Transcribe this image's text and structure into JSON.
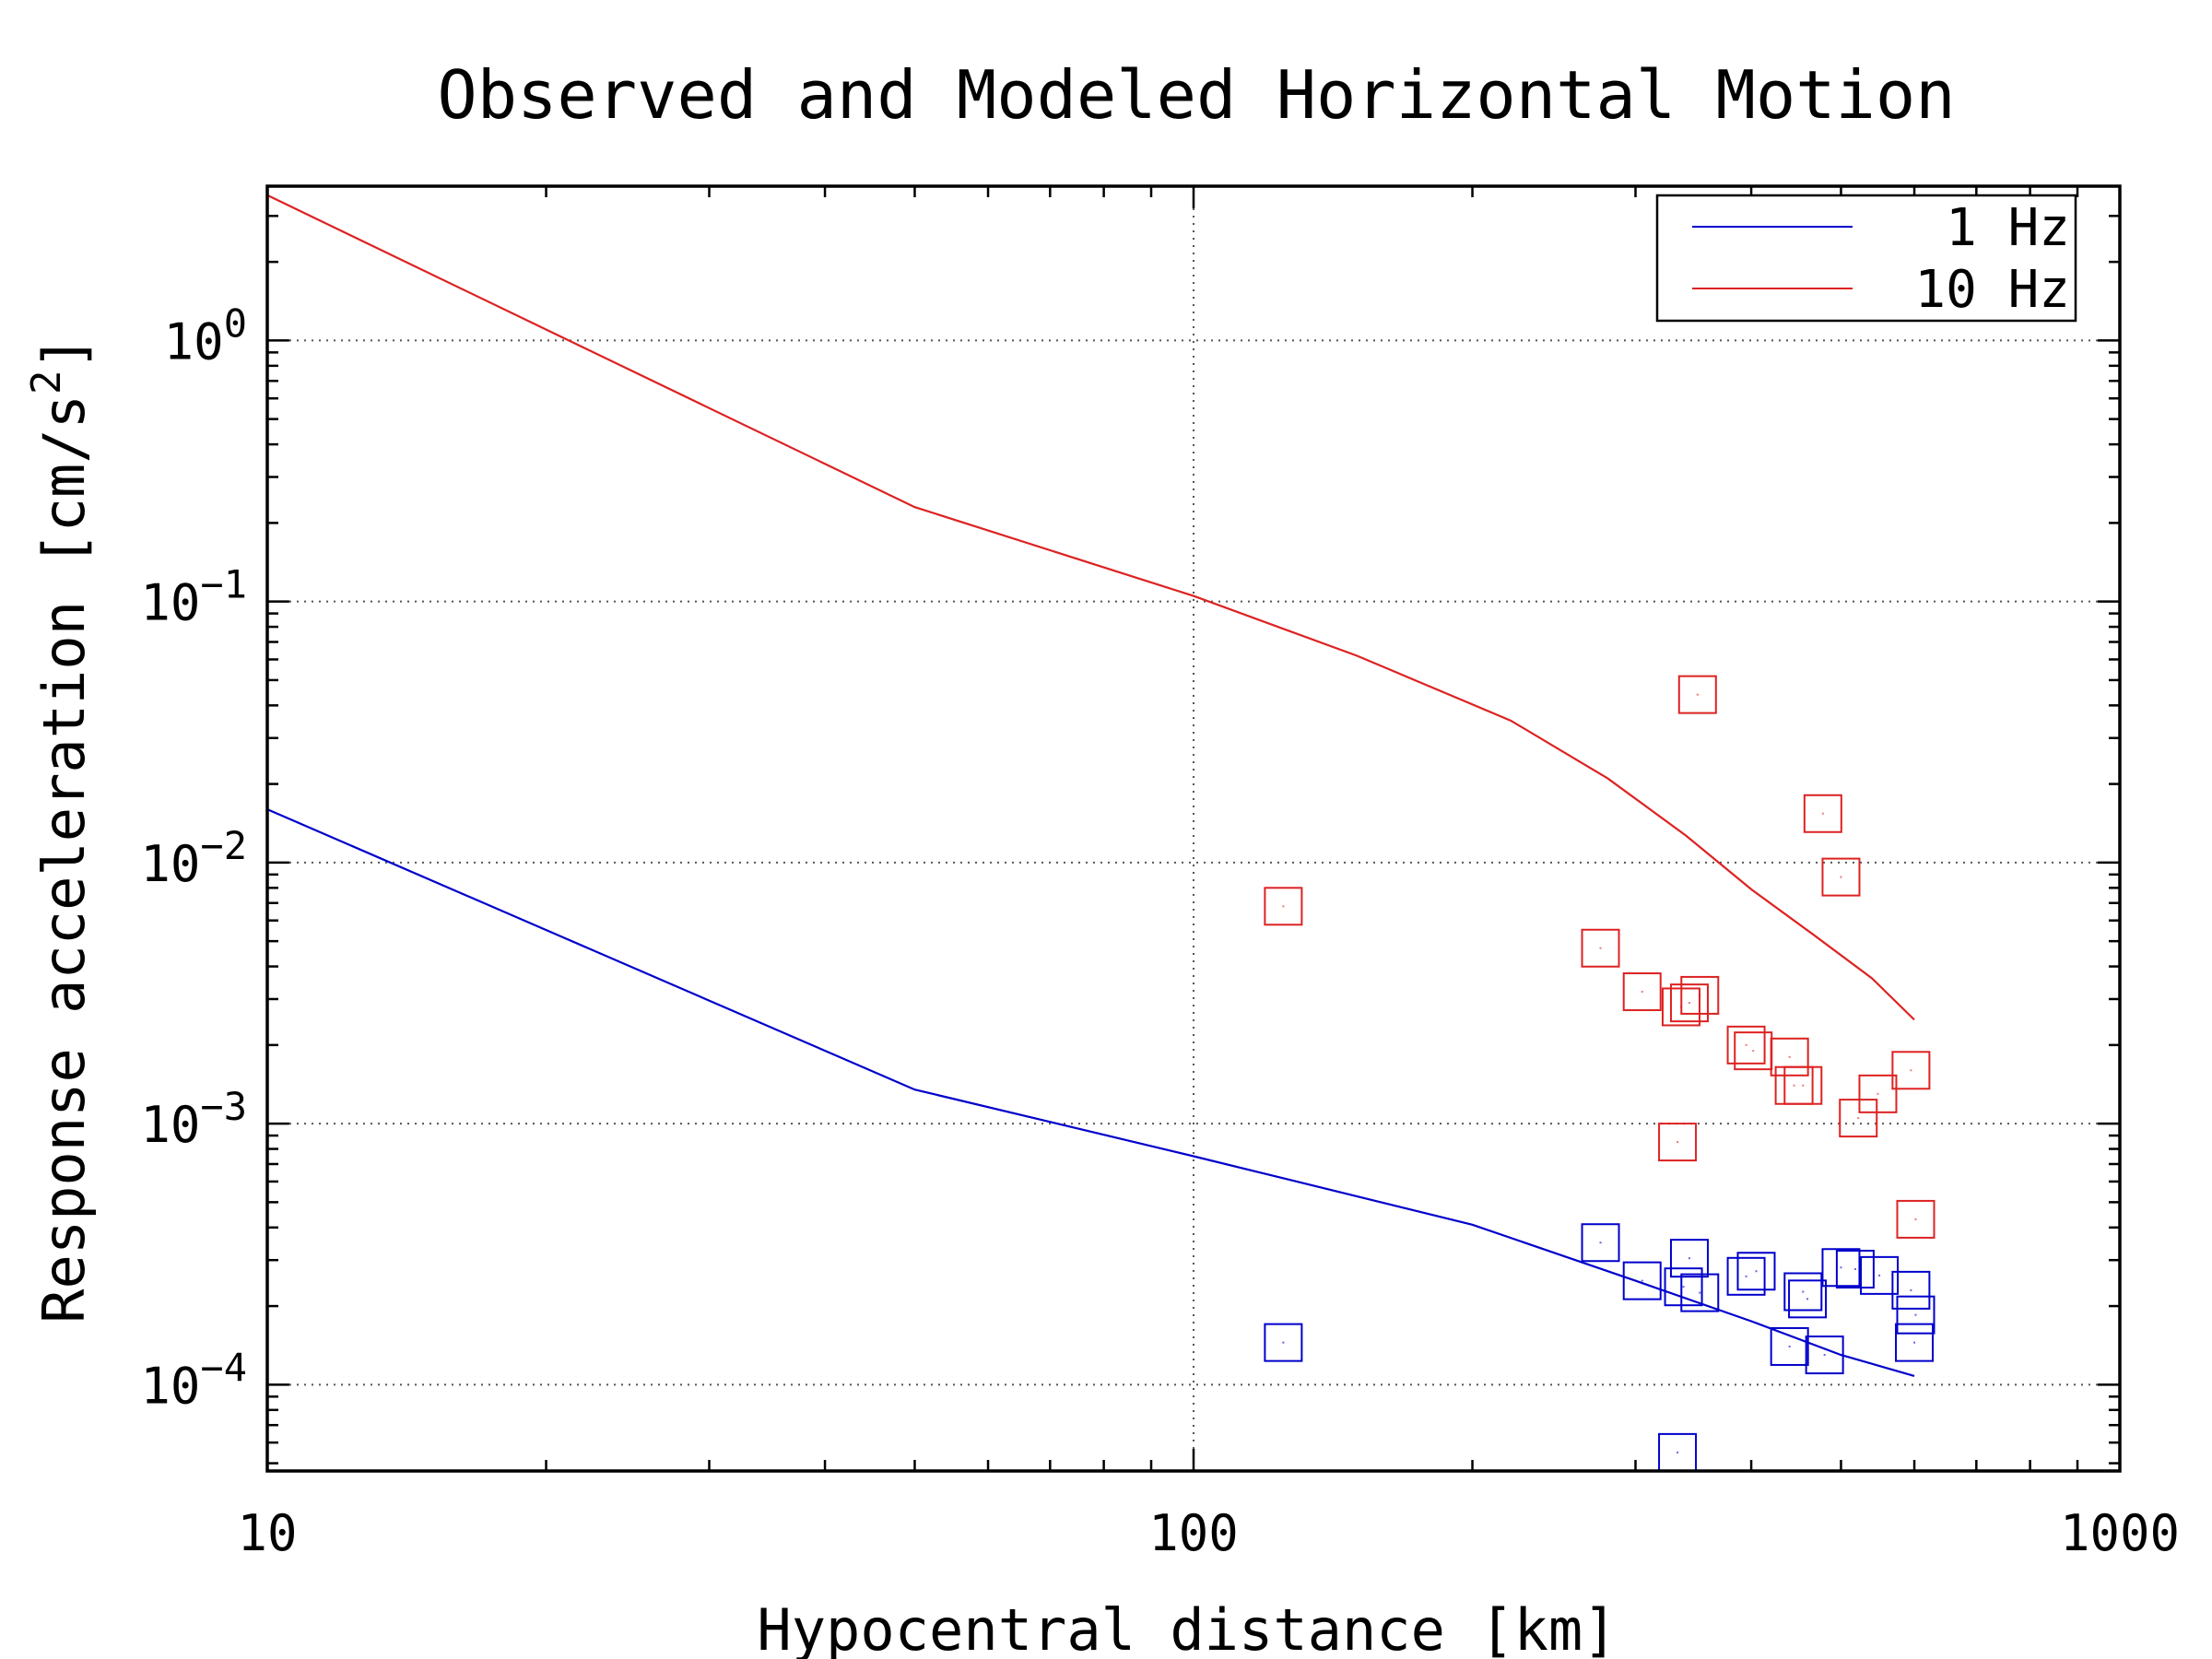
{
  "chart_data": {
    "type": "scatter",
    "title": "Observed and Modeled Horizontal Motion",
    "xlabel": "Hypocentral distance [km]",
    "ylabel": "Response acceleration [cm/s²]",
    "ylabel_text": "Response acceleration [cm/s",
    "ylabel_sup": "2",
    "ylabel_close": "]",
    "xscale": "log",
    "yscale": "log",
    "xlim": [
      10,
      1000
    ],
    "ylim": [
      4.67e-05,
      3.9
    ],
    "x_ticks": [
      {
        "value": 10,
        "label": "10"
      },
      {
        "value": 100,
        "label": "100"
      },
      {
        "value": 1000,
        "label": "1000"
      }
    ],
    "y_ticks": [
      {
        "value": 1,
        "base": "10",
        "exp": "0"
      },
      {
        "value": 0.1,
        "base": "10",
        "exp": "−1"
      },
      {
        "value": 0.01,
        "base": "10",
        "exp": "−2"
      },
      {
        "value": 0.001,
        "base": "10",
        "exp": "−3"
      },
      {
        "value": 0.0001,
        "base": "10",
        "exp": "−4"
      }
    ],
    "grid": true,
    "legend_position": "top-right",
    "series": [
      {
        "name": "1 Hz",
        "color": "#0000cc",
        "kind": "line",
        "x": [
          10,
          50,
          100,
          200,
          300,
          400,
          500,
          600
        ],
        "y": [
          0.016,
          0.00135,
          0.00075,
          0.00041,
          0.00025,
          0.000175,
          0.00013,
          0.000108
        ]
      },
      {
        "name": "10 Hz",
        "color": "#dd2222",
        "kind": "line",
        "x": [
          10,
          50,
          100,
          150,
          220,
          280,
          340,
          400,
          470,
          540,
          600
        ],
        "y": [
          3.6,
          0.23,
          0.105,
          0.062,
          0.035,
          0.021,
          0.0127,
          0.0079,
          0.0052,
          0.0036,
          0.0025
        ]
      },
      {
        "name": "",
        "color": "#0000cc",
        "kind": "markers",
        "x": [
          125,
          275,
          305,
          333,
          338,
          343,
          352,
          395,
          405,
          440,
          455,
          460,
          480,
          500,
          518,
          550,
          595,
          600,
          602
        ],
        "y": [
          0.000145,
          0.00035,
          0.00025,
          5.5e-05,
          0.000237,
          0.000305,
          0.000225,
          0.00026,
          0.000272,
          0.00014,
          0.000227,
          0.000213,
          0.00013,
          0.000281,
          0.000277,
          0.000262,
          0.00023,
          0.000145,
          0.000185
        ]
      },
      {
        "name": "",
        "color": "#dd2222",
        "kind": "markers",
        "x": [
          125,
          275,
          305,
          333,
          336,
          343,
          352,
          395,
          402,
          440,
          445,
          455,
          478,
          500,
          522,
          548,
          595,
          602
        ],
        "y": [
          0.0068,
          0.0047,
          0.0032,
          0.00085,
          0.0028,
          0.0029,
          0.0031,
          0.002,
          0.0019,
          0.0018,
          0.0014,
          0.0014,
          0.0154,
          0.0088,
          0.00105,
          0.0013,
          0.0016,
          0.00043
        ]
      },
      {
        "name": "",
        "color": "#dd2222",
        "kind": "markers",
        "x": [
          350
        ],
        "y": [
          0.044
        ]
      }
    ]
  }
}
